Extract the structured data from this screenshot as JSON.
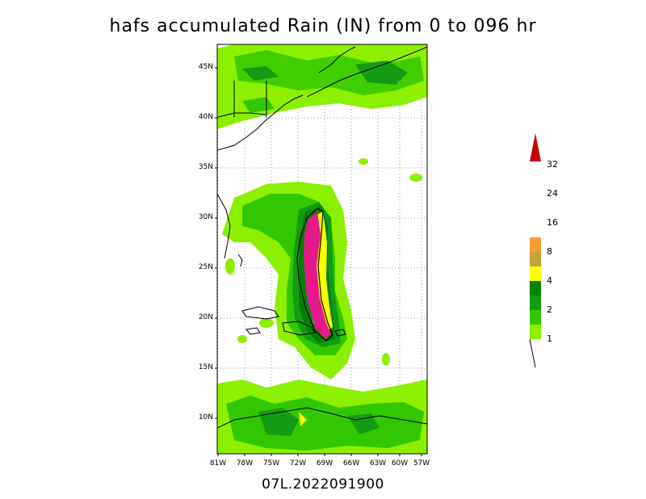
{
  "title": "hafs accumulated Rain (IN) from 0 to 096 hr",
  "footer": "07L.2022091900",
  "map": {
    "lat_labels": [
      "45N",
      "40N",
      "35N",
      "30N",
      "25N",
      "20N",
      "15N",
      "10N"
    ],
    "lon_labels": [
      "81W",
      "78W",
      "75W",
      "72W",
      "69W",
      "66W",
      "63W",
      "60W",
      "57W"
    ]
  },
  "colorbar": {
    "labels": [
      "1",
      "2",
      "4",
      "8",
      "16",
      "24",
      "32"
    ],
    "colors": [
      "#8cf000",
      "#32c800",
      "#149b14",
      "#008200",
      "#ffff00",
      "#c8a03c",
      "#f0a032",
      "#c80000"
    ]
  },
  "rain_colors": {
    "light": "#8cf000",
    "mid": "#32c800",
    "dark": "#149b14",
    "darker": "#008200",
    "yellow": "#ffff00",
    "magenta": "#e6198c"
  }
}
